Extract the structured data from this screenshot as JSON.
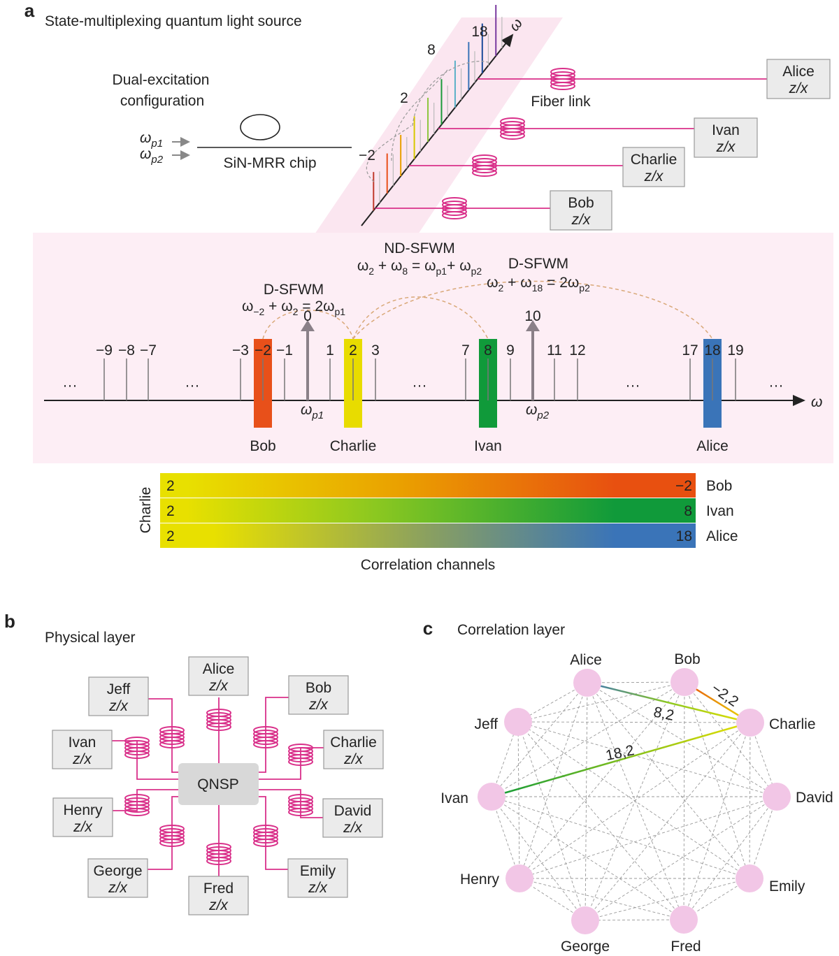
{
  "panel_a": {
    "label": "a",
    "title": "State-multiplexing quantum light source",
    "configuration": [
      "Dual-excitation",
      "configuration"
    ],
    "pumps": [
      [
        "ω",
        {
          "sub": "p1"
        }
      ],
      [
        "ω",
        {
          "sub": "p2"
        }
      ]
    ],
    "chip": "SiN-MRR chip",
    "frequency_axis": "ω",
    "comb_labels": [
      "18",
      "8",
      "2",
      "−2"
    ],
    "fiber_link": "Fiber link",
    "receivers": [
      {
        "name": "Alice",
        "basis": "z/x"
      },
      {
        "name": "Ivan",
        "basis": "z/x"
      },
      {
        "name": "Charlie",
        "basis": "z/x"
      },
      {
        "name": "Bob",
        "basis": "z/x"
      }
    ],
    "processes": [
      {
        "name": "D-SFWM",
        "equation": [
          "ω",
          {
            "sub": "−2"
          },
          " + ω",
          {
            "sub": "2"
          },
          " = 2ω",
          {
            "sub": "p1"
          }
        ]
      },
      {
        "name": "ND-SFWM",
        "equation": [
          "ω",
          {
            "sub": "2"
          },
          " + ω",
          {
            "sub": "8"
          },
          " = ω",
          {
            "sub": "p1"
          },
          "+ ω",
          {
            "sub": "p2"
          }
        ]
      },
      {
        "name": "D-SFWM",
        "equation": [
          "ω",
          {
            "sub": "2"
          },
          " + ω",
          {
            "sub": "18"
          },
          " = 2ω",
          {
            "sub": "p2"
          }
        ]
      }
    ],
    "modes": [
      "−9",
      "−8",
      "−7",
      "−3",
      "−2",
      "−1",
      "1",
      "2",
      "3",
      "7",
      "8",
      "9",
      "11",
      "12",
      "17",
      "18",
      "19"
    ],
    "pump_modes": [
      "0",
      "10"
    ],
    "pump_labels": [
      [
        "ω",
        {
          "sub": "p1"
        }
      ],
      [
        "ω",
        {
          "sub": "p2"
        }
      ]
    ],
    "ellipsis": "···",
    "band_users": [
      "Bob",
      "Charlie",
      "Ivan",
      "Alice"
    ],
    "correlation": {
      "source": "Charlie",
      "rows": [
        {
          "left": "2",
          "right": "−2",
          "user": "Bob"
        },
        {
          "left": "2",
          "right": "8",
          "user": "Ivan"
        },
        {
          "left": "2",
          "right": "18",
          "user": "Alice"
        }
      ],
      "caption": "Correlation channels"
    }
  },
  "panel_b": {
    "label": "b",
    "title": "Physical layer",
    "hub": "QNSP",
    "users": [
      {
        "name": "Alice",
        "basis": "z/x"
      },
      {
        "name": "Bob",
        "basis": "z/x"
      },
      {
        "name": "Charlie",
        "basis": "z/x"
      },
      {
        "name": "David",
        "basis": "z/x"
      },
      {
        "name": "Emily",
        "basis": "z/x"
      },
      {
        "name": "Fred",
        "basis": "z/x"
      },
      {
        "name": "George",
        "basis": "z/x"
      },
      {
        "name": "Henry",
        "basis": "z/x"
      },
      {
        "name": "Ivan",
        "basis": "z/x"
      },
      {
        "name": "Jeff",
        "basis": "z/x"
      }
    ]
  },
  "panel_c": {
    "label": "c",
    "title": "Correlation layer",
    "nodes": [
      "Alice",
      "Bob",
      "Charlie",
      "David",
      "Emily",
      "Fred",
      "George",
      "Henry",
      "Ivan",
      "Jeff"
    ],
    "edge_labels": [
      "−2,2",
      "8,2",
      "18,2"
    ]
  }
}
